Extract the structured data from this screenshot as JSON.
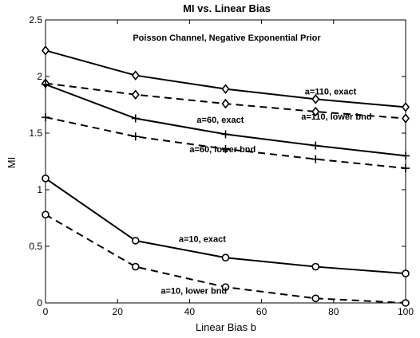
{
  "chart_data": {
    "type": "line",
    "title": "MI vs. Linear Bias",
    "subtitle": "Poisson Channel, Negative Exponential Prior",
    "xlabel": "Linear Bias b",
    "ylabel": "MI",
    "xlim": [
      0,
      100
    ],
    "ylim": [
      0,
      2.5
    ],
    "xticks": [
      0,
      20,
      40,
      60,
      80,
      100
    ],
    "yticks": [
      0,
      0.5,
      1,
      1.5,
      2,
      2.5
    ],
    "x": [
      0,
      25,
      50,
      75,
      100
    ],
    "series": [
      {
        "name": "a=110, exact",
        "values": [
          2.23,
          2.01,
          1.89,
          1.8,
          1.73
        ],
        "line": "solid",
        "marker": "diamond"
      },
      {
        "name": "a=110, lower bnd",
        "values": [
          1.94,
          1.84,
          1.76,
          1.69,
          1.63
        ],
        "line": "dashed",
        "marker": "diamond"
      },
      {
        "name": "a=60, exact",
        "values": [
          1.93,
          1.63,
          1.49,
          1.39,
          1.3
        ],
        "line": "solid",
        "marker": "plus"
      },
      {
        "name": "a=60, lower bnd",
        "values": [
          1.64,
          1.47,
          1.36,
          1.27,
          1.19
        ],
        "line": "dashed",
        "marker": "plus"
      },
      {
        "name": "a=10, exact",
        "values": [
          1.1,
          0.55,
          0.4,
          0.32,
          0.26
        ],
        "line": "solid",
        "marker": "circle"
      },
      {
        "name": "a=10, lower bnd",
        "values": [
          0.78,
          0.32,
          0.14,
          0.04,
          0.0
        ],
        "line": "dashed",
        "marker": "circle"
      }
    ],
    "annotations": [
      {
        "text": "a=110, exact",
        "x": 72,
        "y": 1.84
      },
      {
        "text": "a=110, lower bnd",
        "x": 71,
        "y": 1.62
      },
      {
        "text": "a=60, exact",
        "x": 42,
        "y": 1.59
      },
      {
        "text": "a=60, lower bnd",
        "x": 40,
        "y": 1.33
      },
      {
        "text": "a=10, exact",
        "x": 37,
        "y": 0.54
      },
      {
        "text": "a=10, lower bnd",
        "x": 32,
        "y": 0.08
      }
    ],
    "grid": false,
    "legend": "none"
  }
}
